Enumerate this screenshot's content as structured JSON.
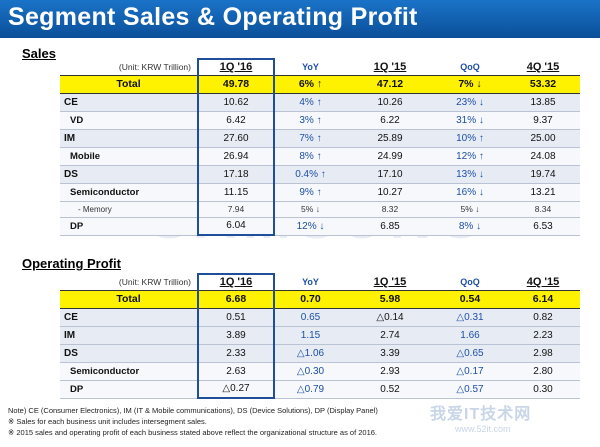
{
  "title": "Segment Sales & Operating Profit",
  "brand_color": "#0b4f99",
  "highlight_color": "#fff200",
  "watermark_text": "SAMSUNG",
  "site_watermark": {
    "logo": "我爱IT技术网",
    "sub": "www.52it.com"
  },
  "sales": {
    "label": "Sales",
    "unit": "(Unit: KRW Trillion)",
    "headers": [
      "1Q '16",
      "YoY",
      "1Q '15",
      "QoQ",
      "4Q '15"
    ],
    "rows": [
      {
        "label": "Total",
        "values": [
          "49.78",
          "6% ↑",
          "47.12",
          "7% ↓",
          "53.32"
        ]
      },
      {
        "label": "CE",
        "values": [
          "10.62",
          "4% ↑",
          "10.26",
          "23% ↓",
          "13.85"
        ]
      },
      {
        "label": "VD",
        "values": [
          "6.42",
          "3% ↑",
          "6.22",
          "31% ↓",
          "9.37"
        ]
      },
      {
        "label": "IM",
        "values": [
          "27.60",
          "7% ↑",
          "25.89",
          "10% ↑",
          "25.00"
        ]
      },
      {
        "label": "Mobile",
        "values": [
          "26.94",
          "8% ↑",
          "24.99",
          "12% ↑",
          "24.08"
        ]
      },
      {
        "label": "DS",
        "values": [
          "17.18",
          "0.4% ↑",
          "17.10",
          "13% ↓",
          "19.74"
        ]
      },
      {
        "label": "Semiconductor",
        "values": [
          "11.15",
          "9% ↑",
          "10.27",
          "16% ↓",
          "13.21"
        ]
      },
      {
        "label": "- Memory",
        "values": [
          "7.94",
          "5% ↓",
          "8.32",
          "5% ↓",
          "8.34"
        ]
      },
      {
        "label": "DP",
        "values": [
          "6.04",
          "12% ↓",
          "6.85",
          "8% ↓",
          "6.53"
        ]
      }
    ]
  },
  "op": {
    "label": "Operating Profit",
    "unit": "(Unit: KRW Trillion)",
    "headers": [
      "1Q '16",
      "YoY",
      "1Q '15",
      "QoQ",
      "4Q '15"
    ],
    "rows": [
      {
        "label": "Total",
        "values": [
          "6.68",
          "0.70",
          "5.98",
          "0.54",
          "6.14"
        ]
      },
      {
        "label": "CE",
        "values": [
          "0.51",
          "0.65",
          "△0.14",
          "△0.31",
          "0.82"
        ]
      },
      {
        "label": "IM",
        "values": [
          "3.89",
          "1.15",
          "2.74",
          "1.66",
          "2.23"
        ]
      },
      {
        "label": "DS",
        "values": [
          "2.33",
          "△1.06",
          "3.39",
          "△0.65",
          "2.98"
        ]
      },
      {
        "label": "Semiconductor",
        "values": [
          "2.63",
          "△0.30",
          "2.93",
          "△0.17",
          "2.80"
        ]
      },
      {
        "label": "DP",
        "values": [
          "△0.27",
          "△0.79",
          "0.52",
          "△0.57",
          "0.30"
        ]
      }
    ]
  },
  "notes": [
    "Note) CE (Consumer Electronics), IM (IT & Mobile communications), DS (Device Solutions), DP (Display Panel)",
    "※ Sales for each business unit includes intersegment sales.",
    "※ 2015 sales and operating profit of each business stated above reflect the organizational structure as of 2016."
  ]
}
